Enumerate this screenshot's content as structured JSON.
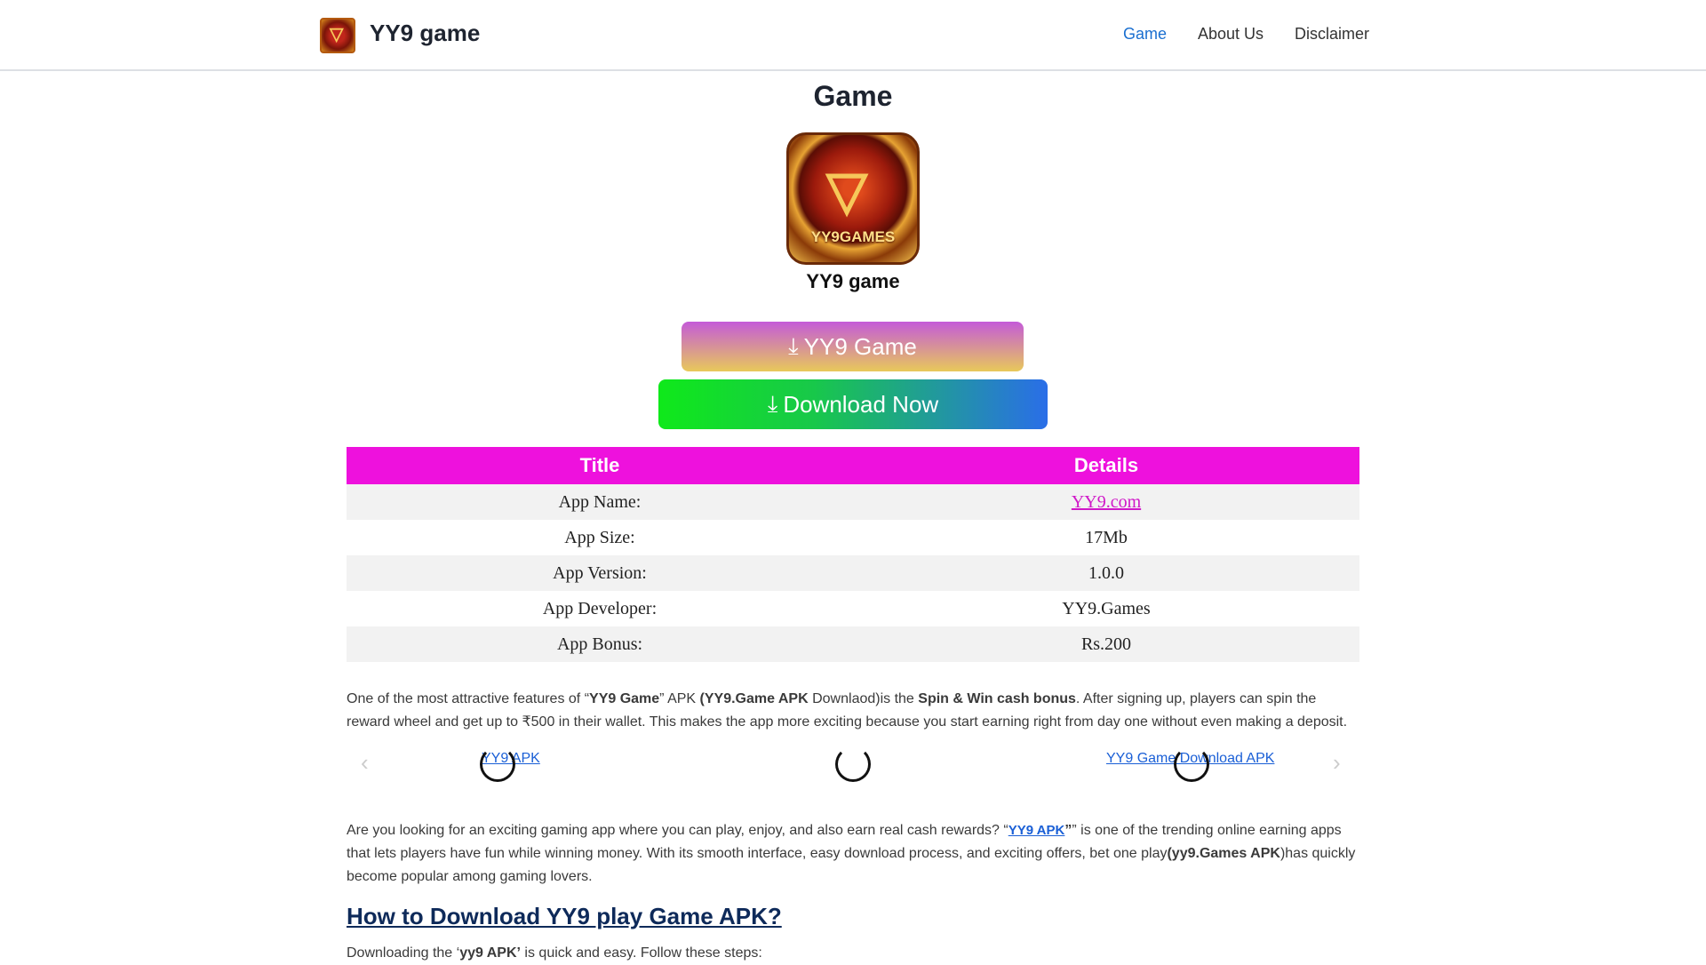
{
  "header": {
    "site_title": "YY9 game",
    "nav": [
      "Game",
      "About Us",
      "Disclaimer"
    ],
    "active_color": "#1a6fd0"
  },
  "main": {
    "title": "Game",
    "app_icon_text": "YY9GAMES",
    "app_name": "YY9 game",
    "button1": "YY9 Game",
    "button2": "Download Now",
    "table": {
      "headers": [
        "Title",
        "Details"
      ],
      "rows": [
        [
          "App Name:",
          "YY9.com"
        ],
        [
          "App Size:",
          "17Mb"
        ],
        [
          "App Version:",
          "1.0.0"
        ],
        [
          "App Developer:",
          "YY9.Games"
        ],
        [
          "App Bonus:",
          "Rs.200"
        ]
      ]
    },
    "para1": {
      "a": "One of the most attractive features of “",
      "b": "YY9 Game",
      "c": "” APK ",
      "d": "(YY9.Game APK",
      "e": " Downlaod)is the ",
      "f": "Spin & Win cash bonus",
      "g": ". After signing up, players can spin the reward wheel and get up to ₹500 in their wallet. This makes the app more exciting because you start earning right from day one without even making a deposit."
    },
    "carousel": {
      "items": [
        "YY9 APK",
        "YY9 Game Download APK"
      ]
    },
    "para2": {
      "a": "Are you looking for an exciting gaming app where you can play, enjoy, and also earn real cash rewards? “",
      "link": "YY9 APK",
      "b": "” is one of the trending online earning apps that lets players have fun while winning money. With its smooth interface, easy download process, and exciting offers, bet one play",
      "c": "(yy9.Games APK",
      "d": ")has quickly become popular among gaming lovers."
    },
    "heading2": "How to Download YY9 play Game APK?",
    "para3": {
      "a": "Downloading the ‘",
      "b": "yy9 APK’",
      "c": " is quick and easy. Follow these steps:"
    }
  }
}
